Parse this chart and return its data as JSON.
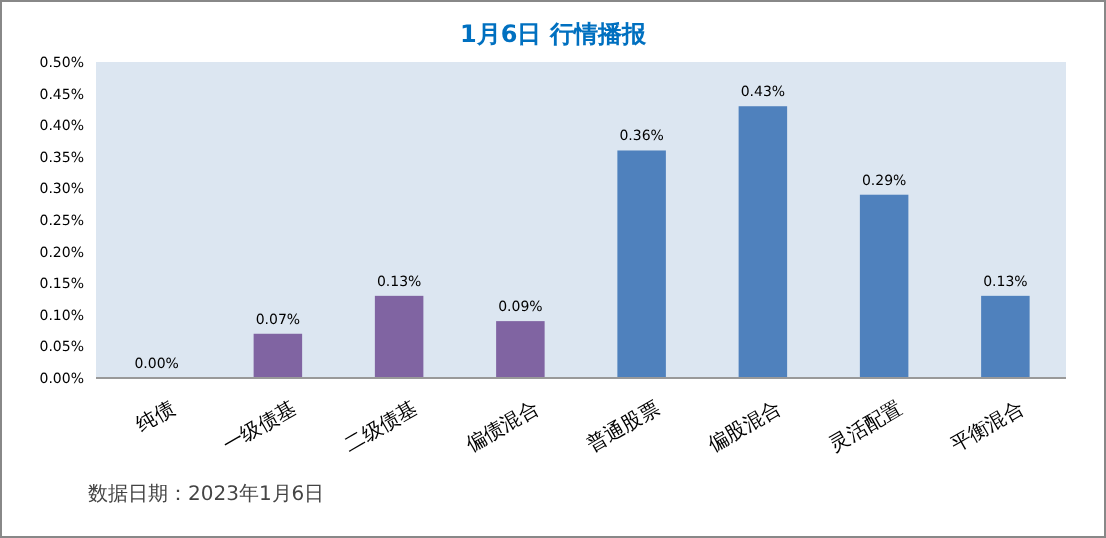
{
  "chart_data": {
    "type": "bar",
    "title": "1月6日 行情播报",
    "categories": [
      "纯债",
      "一级债基",
      "二级债基",
      "偏债混合",
      "普通股票",
      "偏股混合",
      "灵活配置",
      "平衡混合"
    ],
    "values": [
      0.0,
      0.07,
      0.13,
      0.09,
      0.36,
      0.43,
      0.29,
      0.13
    ],
    "colors": [
      "#8064a2",
      "#8064a2",
      "#8064a2",
      "#8064a2",
      "#4f81bd",
      "#4f81bd",
      "#4f81bd",
      "#4f81bd"
    ],
    "value_labels": [
      "0.00%",
      "0.07%",
      "0.13%",
      "0.09%",
      "0.36%",
      "0.43%",
      "0.29%",
      "0.13%"
    ],
    "ylim": [
      0,
      0.5
    ],
    "yticks": [
      {
        "value": 0,
        "label": "0.00%"
      },
      {
        "value": 0.05,
        "label": "0.05%"
      },
      {
        "value": 0.1,
        "label": "0.10%"
      },
      {
        "value": 0.15,
        "label": "0.15%"
      },
      {
        "value": 0.2,
        "label": "0.20%"
      },
      {
        "value": 0.25,
        "label": "0.25%"
      },
      {
        "value": 0.3,
        "label": "0.30%"
      },
      {
        "value": 0.35,
        "label": "0.35%"
      },
      {
        "value": 0.4,
        "label": "0.40%"
      },
      {
        "value": 0.45,
        "label": "0.45%"
      },
      {
        "value": 0.5,
        "label": "0.50%"
      }
    ],
    "annotations": [
      "数据日期：2023年1月6日"
    ]
  }
}
